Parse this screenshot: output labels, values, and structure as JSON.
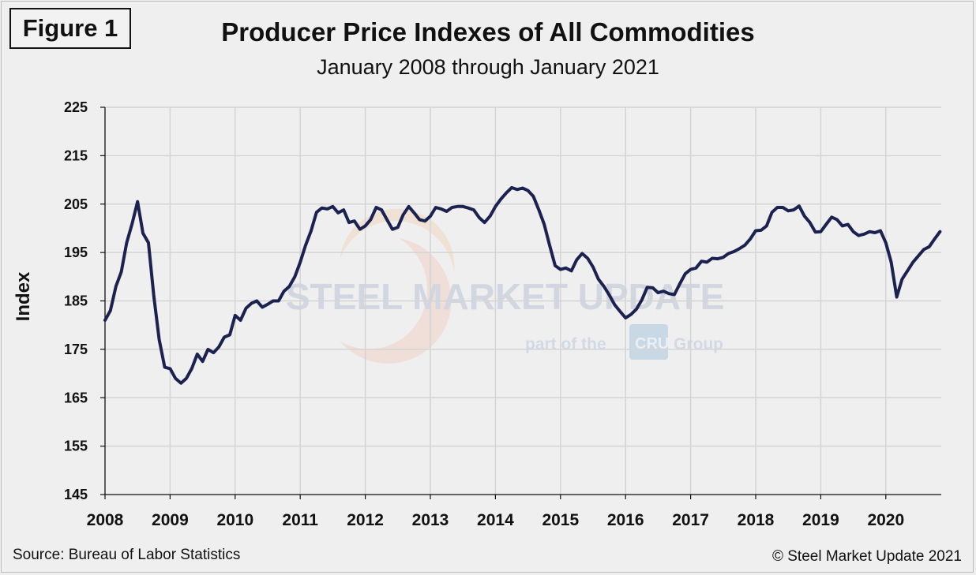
{
  "figure_label": "Figure 1",
  "source": "Source: Bureau of Labor Statistics",
  "copyright": "© Steel Market Update 2021",
  "watermark": {
    "main": "STEEL MARKET UPDATE",
    "tagline_pre": "part of the",
    "logo": "CRU",
    "tagline_post": "Group"
  },
  "colors": {
    "line": "#1c2250",
    "grid": "#d4d4d4",
    "background": "#efefef"
  },
  "chart_data": {
    "type": "line",
    "title": "Producer Price Indexes of All Commodities",
    "subtitle": "January 2008 through January 2021",
    "xlabel": "",
    "ylabel": "Index",
    "ylim": [
      145,
      225
    ],
    "yticks": [
      145,
      155,
      165,
      175,
      185,
      195,
      205,
      215,
      225
    ],
    "xlim": [
      2008,
      2020.83
    ],
    "xticks": [
      "2008",
      "2009",
      "2010",
      "2011",
      "2012",
      "2013",
      "2014",
      "2015",
      "2016",
      "2017",
      "2018",
      "2019",
      "2020"
    ],
    "grid": true,
    "legend": "none",
    "series": [
      {
        "x": [
          2008.0,
          2008.083,
          2008.167,
          2008.25,
          2008.333,
          2008.417,
          2008.5,
          2008.583,
          2008.667,
          2008.75,
          2008.833,
          2008.917,
          2009.0,
          2009.083,
          2009.167,
          2009.25,
          2009.333,
          2009.417,
          2009.5,
          2009.583,
          2009.667,
          2009.75,
          2009.833,
          2009.917,
          2010.0,
          2010.083,
          2010.167,
          2010.25,
          2010.333,
          2010.417,
          2010.5,
          2010.583,
          2010.667,
          2010.75,
          2010.833,
          2010.917,
          2011.0,
          2011.083,
          2011.167,
          2011.25,
          2011.333,
          2011.417,
          2011.5,
          2011.583,
          2011.667,
          2011.75,
          2011.833,
          2011.917,
          2012.0,
          2012.083,
          2012.167,
          2012.25,
          2012.333,
          2012.417,
          2012.5,
          2012.583,
          2012.667,
          2012.75,
          2012.833,
          2012.917,
          2013.0,
          2013.083,
          2013.167,
          2013.25,
          2013.333,
          2013.417,
          2013.5,
          2013.583,
          2013.667,
          2013.75,
          2013.833,
          2013.917,
          2014.0,
          2014.083,
          2014.167,
          2014.25,
          2014.333,
          2014.417,
          2014.5,
          2014.583,
          2014.667,
          2014.75,
          2014.833,
          2014.917,
          2015.0,
          2015.083,
          2015.167,
          2015.25,
          2015.333,
          2015.417,
          2015.5,
          2015.583,
          2015.667,
          2015.75,
          2015.833,
          2015.917,
          2016.0,
          2016.083,
          2016.167,
          2016.25,
          2016.333,
          2016.417,
          2016.5,
          2016.583,
          2016.667,
          2016.75,
          2016.833,
          2016.917,
          2017.0,
          2017.083,
          2017.167,
          2017.25,
          2017.333,
          2017.417,
          2017.5,
          2017.583,
          2017.667,
          2017.75,
          2017.833,
          2017.917,
          2018.0,
          2018.083,
          2018.167,
          2018.25,
          2018.333,
          2018.417,
          2018.5,
          2018.583,
          2018.667,
          2018.75,
          2018.833,
          2018.917,
          2019.0,
          2019.083,
          2019.167,
          2019.25,
          2019.333,
          2019.417,
          2019.5,
          2019.583,
          2019.667,
          2019.75,
          2019.833,
          2019.917,
          2020.0,
          2020.083,
          2020.167,
          2020.25,
          2020.333,
          2020.417,
          2020.5,
          2020.583,
          2020.667,
          2020.75,
          2020.833
        ],
        "values": [
          181,
          183,
          188,
          191,
          197,
          201,
          205.5,
          199,
          197,
          186,
          177,
          171.3,
          171,
          169,
          168,
          169,
          171,
          174,
          172.5,
          175,
          174.3,
          175.5,
          177.5,
          178,
          182,
          181,
          183.5,
          184.5,
          185,
          183.7,
          184.3,
          185,
          185,
          187,
          188,
          190,
          193,
          196.5,
          199.5,
          203.3,
          204.2,
          204,
          204.5,
          203.2,
          203.8,
          201.2,
          201.5,
          199.8,
          200.5,
          201.8,
          204.3,
          203.8,
          201.8,
          199.8,
          200.2,
          202.8,
          204.5,
          203.2,
          201.8,
          201.5,
          202.5,
          204.3,
          204,
          203.5,
          204.3,
          204.5,
          204.5,
          204.2,
          203.8,
          202.2,
          201.2,
          202.5,
          204.5,
          206,
          207.3,
          208.4,
          208,
          208.3,
          207.8,
          206.6,
          203.8,
          200.8,
          196.5,
          192.3,
          191.5,
          191.8,
          191.2,
          193.5,
          194.8,
          193.8,
          192,
          189.5,
          188,
          186.2,
          184.2,
          182.8,
          181.5,
          182.2,
          183.3,
          185.2,
          187.8,
          187.7,
          186.7,
          187,
          186.5,
          186.3,
          188.5,
          190.6,
          191.5,
          191.8,
          193.2,
          193,
          193.8,
          193.7,
          194,
          194.8,
          195.2,
          195.8,
          196.5,
          197.8,
          199.5,
          199.6,
          200.5,
          203.3,
          204.3,
          204.3,
          203.6,
          203.8,
          204.6,
          202.5,
          201.2,
          199.2,
          199.3,
          200.8,
          202.3,
          201.8,
          200.5,
          200.8,
          199.3,
          198.5,
          198.8,
          199.3,
          199.1,
          199.5,
          197,
          193,
          185.8,
          189.5,
          191.2,
          193,
          194.3,
          195.6,
          196.2,
          197.8,
          199.3
        ]
      }
    ]
  }
}
